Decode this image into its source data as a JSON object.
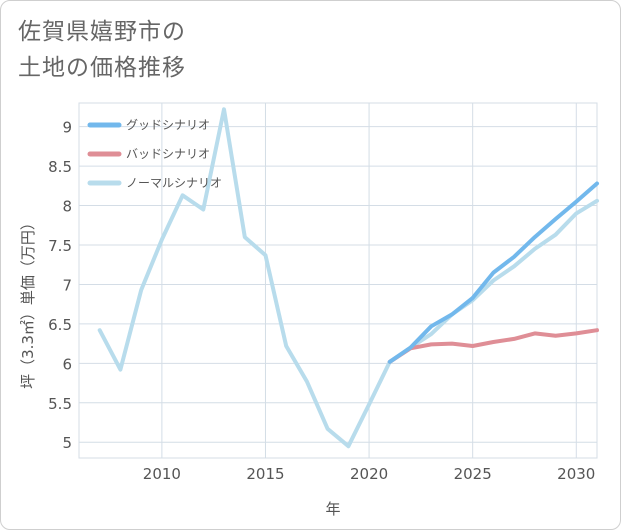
{
  "title_line1": "佐賀県嬉野市の",
  "title_line2": "土地の価格推移",
  "chart_data": {
    "type": "line",
    "xlabel": "年",
    "ylabel": "坪（3.3㎡）単価（万円）",
    "xlim": [
      2006,
      2031
    ],
    "ylim": [
      4.8,
      9.3
    ],
    "x_ticks": [
      "2010",
      "2015",
      "2020",
      "2025",
      "2030"
    ],
    "y_ticks": [
      "5",
      "5.5",
      "6",
      "6.5",
      "7",
      "7.5",
      "8",
      "8.5",
      "9"
    ],
    "grid": true,
    "legend_position": "top-left",
    "series": [
      {
        "name": "グッドシナリオ",
        "color": "#72b8ec",
        "x": [
          2021,
          2022,
          2023,
          2024,
          2025,
          2026,
          2027,
          2028,
          2029,
          2030,
          2031
        ],
        "y": [
          6.02,
          6.2,
          6.47,
          6.62,
          6.83,
          7.15,
          7.35,
          7.6,
          7.83,
          8.05,
          8.28
        ]
      },
      {
        "name": "バッドシナリオ",
        "color": "#df8e96",
        "x": [
          2021,
          2022,
          2023,
          2024,
          2025,
          2026,
          2027,
          2028,
          2029,
          2030,
          2031
        ],
        "y": [
          6.02,
          6.19,
          6.24,
          6.25,
          6.22,
          6.27,
          6.31,
          6.38,
          6.35,
          6.38,
          6.42
        ]
      },
      {
        "name": "ノーマルシナリオ",
        "color": "#b8dcec",
        "x": [
          2007,
          2008,
          2009,
          2010,
          2011,
          2012,
          2013,
          2014,
          2015,
          2016,
          2017,
          2018,
          2019,
          2020,
          2021,
          2022,
          2023,
          2024,
          2025,
          2026,
          2027,
          2028,
          2029,
          2030,
          2031
        ],
        "y": [
          6.42,
          5.92,
          6.93,
          7.57,
          8.13,
          7.95,
          9.22,
          7.6,
          7.37,
          6.22,
          5.77,
          5.17,
          4.95,
          5.48,
          6.02,
          6.2,
          6.37,
          6.62,
          6.8,
          7.05,
          7.23,
          7.45,
          7.63,
          7.9,
          8.06
        ]
      }
    ]
  }
}
